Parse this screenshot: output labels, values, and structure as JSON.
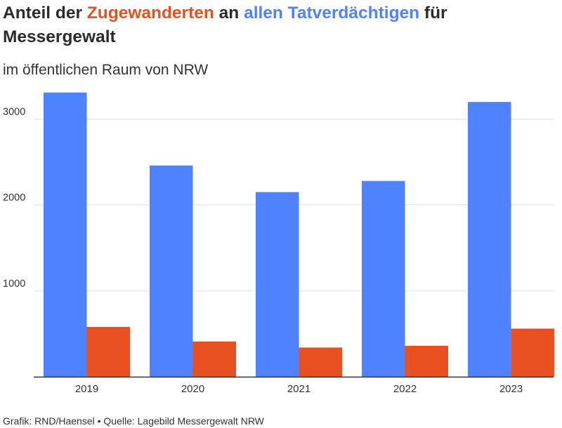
{
  "header": {
    "title_part1": "Anteil der ",
    "title_highlight1": "Zugewanderten",
    "title_part2": " an ",
    "title_highlight2": "allen Tatverdächtigen",
    "title_part3": " für Messergewalt",
    "subtitle": "im öffentlichen Raum von NRW"
  },
  "footer": {
    "credit": "Grafik: RND/Haensel • Quelle: Lagebild Messergewalt NRW"
  },
  "chart_data": {
    "type": "bar",
    "title": "Anteil der Zugewanderten an allen Tatverdächtigen für Messergewalt",
    "subtitle": "im öffentlichen Raum von NRW",
    "categories": [
      "2019",
      "2020",
      "2021",
      "2022",
      "2023"
    ],
    "series": [
      {
        "name": "allen Tatverdächtigen",
        "color": "#4f82ff",
        "values": [
          3310,
          2460,
          2150,
          2280,
          3200
        ]
      },
      {
        "name": "Zugewanderten",
        "color": "#e8511f",
        "values": [
          580,
          410,
          340,
          360,
          560
        ]
      }
    ],
    "yticks": [
      1000,
      2000,
      3000
    ],
    "ylim": [
      0,
      3400
    ],
    "grid": true,
    "legend": "none"
  }
}
